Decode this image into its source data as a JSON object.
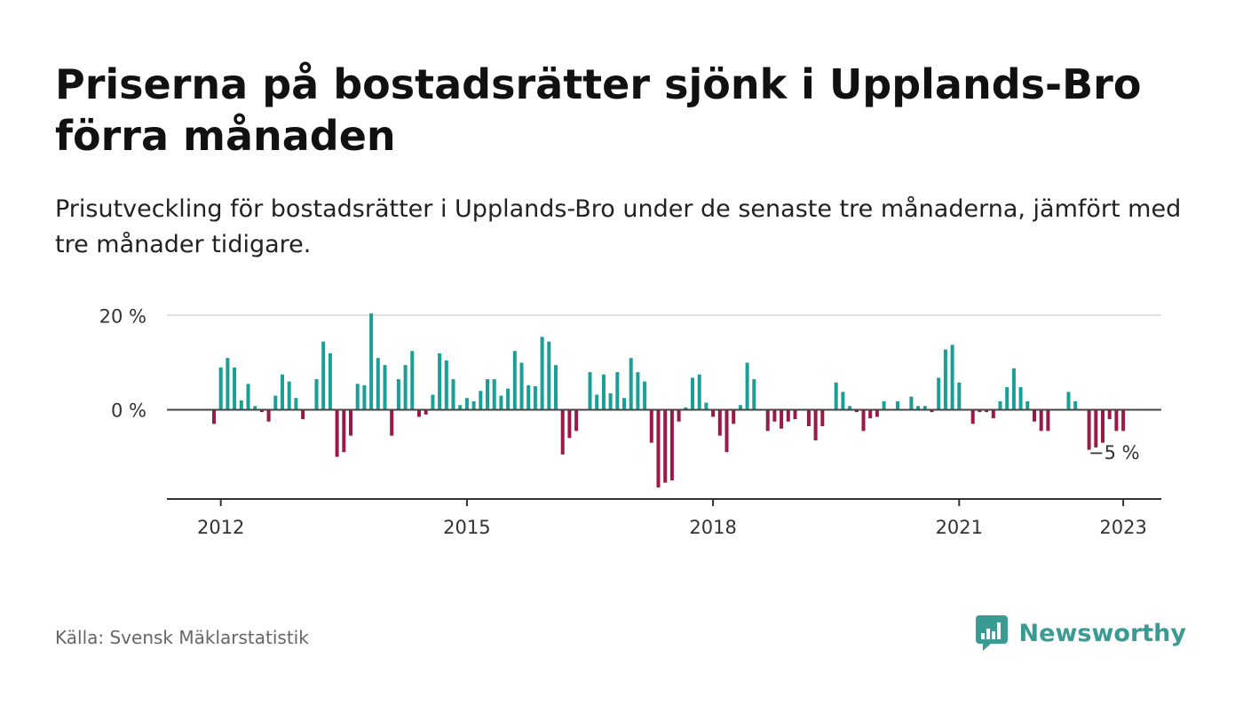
{
  "title": "Priserna på bostadsrätter sjönk i Upplands-Bro förra månaden",
  "subtitle": "Prisutveckling för bostadsrätter i Upplands-Bro under de senaste tre månaderna, jämfört med tre månader tidigare.",
  "source": "Källa: Svensk Mäklarstatistik",
  "brand": {
    "name": "Newsworthy",
    "logo_icon": "newsworthy-bar-chart-speech-bubble-icon"
  },
  "colors": {
    "positive": "#1a9f97",
    "negative": "#9b1848",
    "brand": "#3a9b93"
  },
  "chart_data": {
    "type": "bar",
    "title": "Priserna på bostadsrätter sjönk i Upplands-Bro förra månaden",
    "ylabel": "",
    "xlabel": "",
    "start": "2011-12",
    "frequency": "monthly",
    "x_ticks": [
      "2012",
      "2015",
      "2018",
      "2021",
      "2023"
    ],
    "y_ticks": [
      {
        "value": 0,
        "label": "0 %"
      },
      {
        "value": 20,
        "label": "20 %"
      }
    ],
    "ylim": [
      -19,
      20
    ],
    "grid": true,
    "last_value_label": "−5 %",
    "values": [
      -3,
      9,
      11,
      9,
      2,
      5.5,
      0.8,
      -0.5,
      -2.5,
      3,
      7.5,
      6,
      2.5,
      -2,
      0,
      6.5,
      14.5,
      12,
      -10,
      -9,
      -5.5,
      5.5,
      5.2,
      20.5,
      11,
      9.5,
      -5.5,
      6.5,
      9.5,
      12.5,
      -1.5,
      -1,
      3.2,
      12,
      10.5,
      6.5,
      1,
      2.5,
      1.8,
      4,
      6.5,
      6.5,
      3,
      4.5,
      12.5,
      10,
      5.2,
      5,
      15.5,
      14.5,
      9.5,
      -9.5,
      -6,
      -4.5,
      0,
      8,
      3.2,
      7.5,
      3.5,
      8,
      2.5,
      11,
      8,
      6,
      -7,
      -16.5,
      -15.5,
      -15,
      -2.5,
      0.5,
      6.8,
      7.5,
      1.5,
      -1.5,
      -5.5,
      -9,
      -3,
      1,
      10,
      6.5,
      0,
      -4.5,
      -2.5,
      -4,
      -2.5,
      -2,
      0,
      -3.5,
      -6.5,
      -3.5,
      0,
      5.8,
      3.8,
      0.8,
      -0.5,
      -4.5,
      -1.8,
      -1.5,
      1.8,
      0,
      1.8,
      0,
      2.8,
      0.8,
      0.8,
      -0.5,
      6.8,
      12.8,
      13.8,
      5.8,
      0,
      -3,
      -0.5,
      -0.5,
      -1.8,
      1.8,
      4.8,
      8.8,
      4.8,
      1.8,
      -2.5,
      -4.5,
      -4.5,
      0,
      0,
      3.8,
      1.8,
      0,
      -8.5,
      -8,
      -7,
      -2,
      -4.5,
      -4.5
    ]
  }
}
